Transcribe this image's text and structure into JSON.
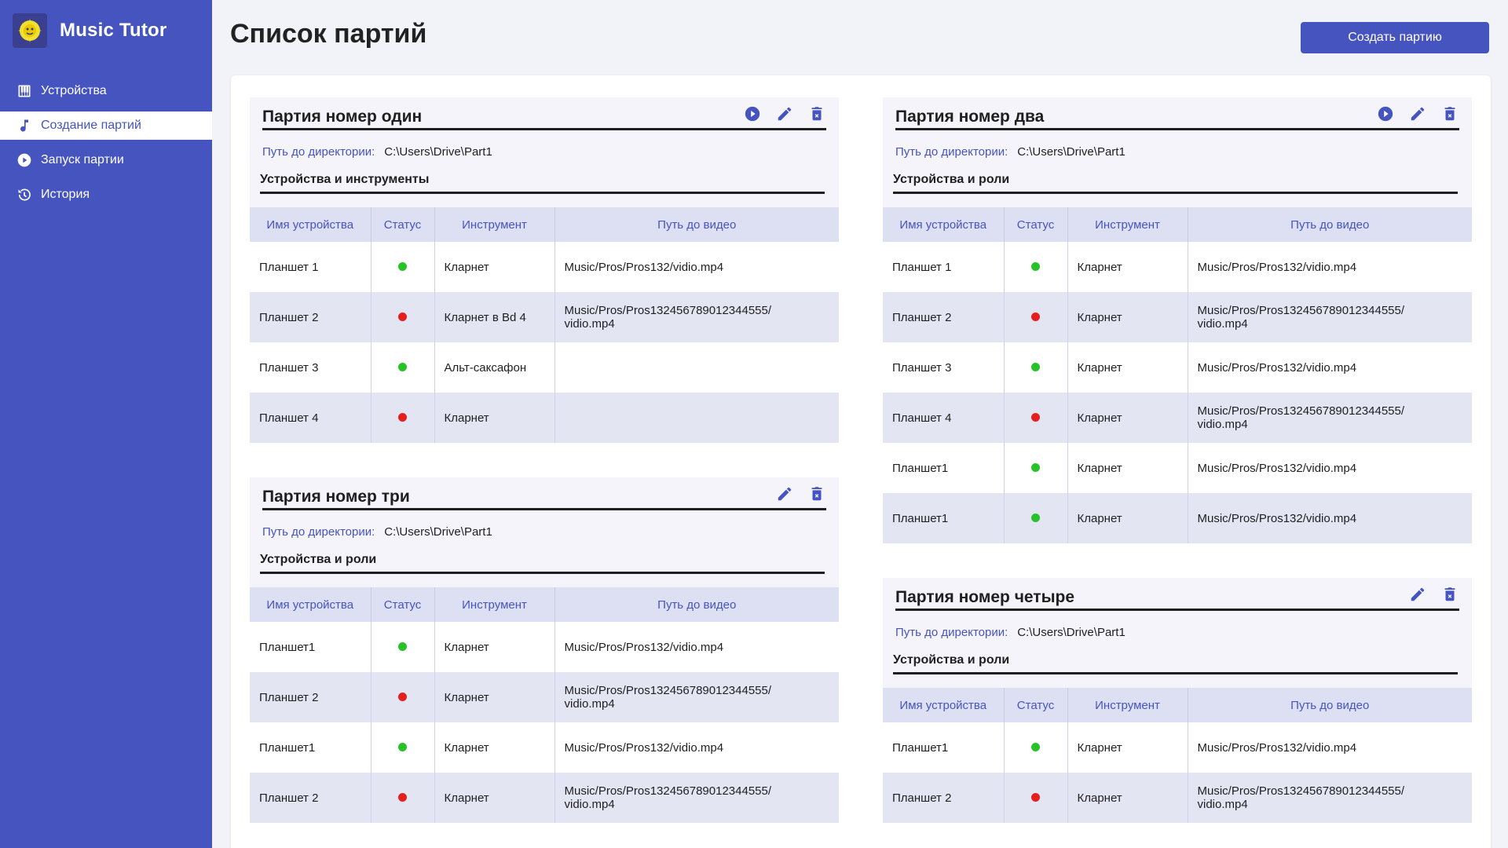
{
  "app": {
    "title": "Music Tutor"
  },
  "sidebar": {
    "items": [
      {
        "label": "Устройства",
        "icon": "piano-icon"
      },
      {
        "label": "Создание партий",
        "icon": "music-note-icon"
      },
      {
        "label": "Запуск партии",
        "icon": "play-circle-icon"
      },
      {
        "label": "История",
        "icon": "history-icon"
      }
    ],
    "active_index": 1
  },
  "page": {
    "title": "Список партий",
    "create_button": "Создать партию"
  },
  "colors": {
    "accent": "#4654c0",
    "status_ok": "#27c227",
    "status_error": "#e51e1e"
  },
  "table_headers": [
    "Имя устройства",
    "Статус",
    "Инструмент",
    "Путь до видео"
  ],
  "path_label": "Путь до директории:",
  "parties": [
    {
      "name": "Партия номер один",
      "has_play": true,
      "path": "C:\\Users\\Drive\\Part1",
      "section_title": "Устройства и инструменты",
      "rows": [
        {
          "device": "Планшет 1",
          "status": "ok",
          "instrument": "Кларнет",
          "video": "Music/Pros/Pros132/vidio.mp4"
        },
        {
          "device": "Планшет 2",
          "status": "error",
          "instrument": "Кларнет в Bd 4",
          "video": "Music/Pros/Pros132456789012344555/\nvidio.mp4"
        },
        {
          "device": "Планшет 3",
          "status": "ok",
          "instrument": "Альт-саксафон",
          "video": ""
        },
        {
          "device": "Планшет 4",
          "status": "error",
          "instrument": "Кларнет",
          "video": ""
        }
      ]
    },
    {
      "name": "Партия номер два",
      "has_play": true,
      "path": "C:\\Users\\Drive\\Part1",
      "section_title": "Устройства и роли",
      "rows": [
        {
          "device": "Планшет 1",
          "status": "ok",
          "instrument": "Кларнет",
          "video": "Music/Pros/Pros132/vidio.mp4"
        },
        {
          "device": "Планшет 2",
          "status": "error",
          "instrument": "Кларнет",
          "video": "Music/Pros/Pros132456789012344555/\nvidio.mp4"
        },
        {
          "device": "Планшет 3",
          "status": "ok",
          "instrument": "Кларнет",
          "video": "Music/Pros/Pros132/vidio.mp4"
        },
        {
          "device": "Планшет 4",
          "status": "error",
          "instrument": "Кларнет",
          "video": "Music/Pros/Pros132456789012344555/\nvidio.mp4"
        },
        {
          "device": "Планшет1",
          "status": "ok",
          "instrument": "Кларнет",
          "video": "Music/Pros/Pros132/vidio.mp4"
        },
        {
          "device": "Планшет1",
          "status": "ok",
          "instrument": "Кларнет",
          "video": "Music/Pros/Pros132/vidio.mp4"
        }
      ]
    },
    {
      "name": "Партия номер три",
      "has_play": false,
      "path": "C:\\Users\\Drive\\Part1",
      "section_title": "Устройства и роли",
      "rows": [
        {
          "device": "Планшет1",
          "status": "ok",
          "instrument": "Кларнет",
          "video": "Music/Pros/Pros132/vidio.mp4"
        },
        {
          "device": "Планшет 2",
          "status": "error",
          "instrument": "Кларнет",
          "video": "Music/Pros/Pros132456789012344555/\nvidio.mp4"
        },
        {
          "device": "Планшет1",
          "status": "ok",
          "instrument": "Кларнет",
          "video": "Music/Pros/Pros132/vidio.mp4"
        },
        {
          "device": "Планшет 2",
          "status": "error",
          "instrument": "Кларнет",
          "video": "Music/Pros/Pros132456789012344555/\nvidio.mp4"
        }
      ]
    },
    {
      "name": "Партия номер четыре",
      "has_play": false,
      "path": "C:\\Users\\Drive\\Part1",
      "section_title": "Устройства и роли",
      "rows": [
        {
          "device": "Планшет1",
          "status": "ok",
          "instrument": "Кларнет",
          "video": "Music/Pros/Pros132/vidio.mp4"
        },
        {
          "device": "Планшет 2",
          "status": "error",
          "instrument": "Кларнет",
          "video": "Music/Pros/Pros132456789012344555/\nvidio.mp4"
        }
      ]
    }
  ]
}
